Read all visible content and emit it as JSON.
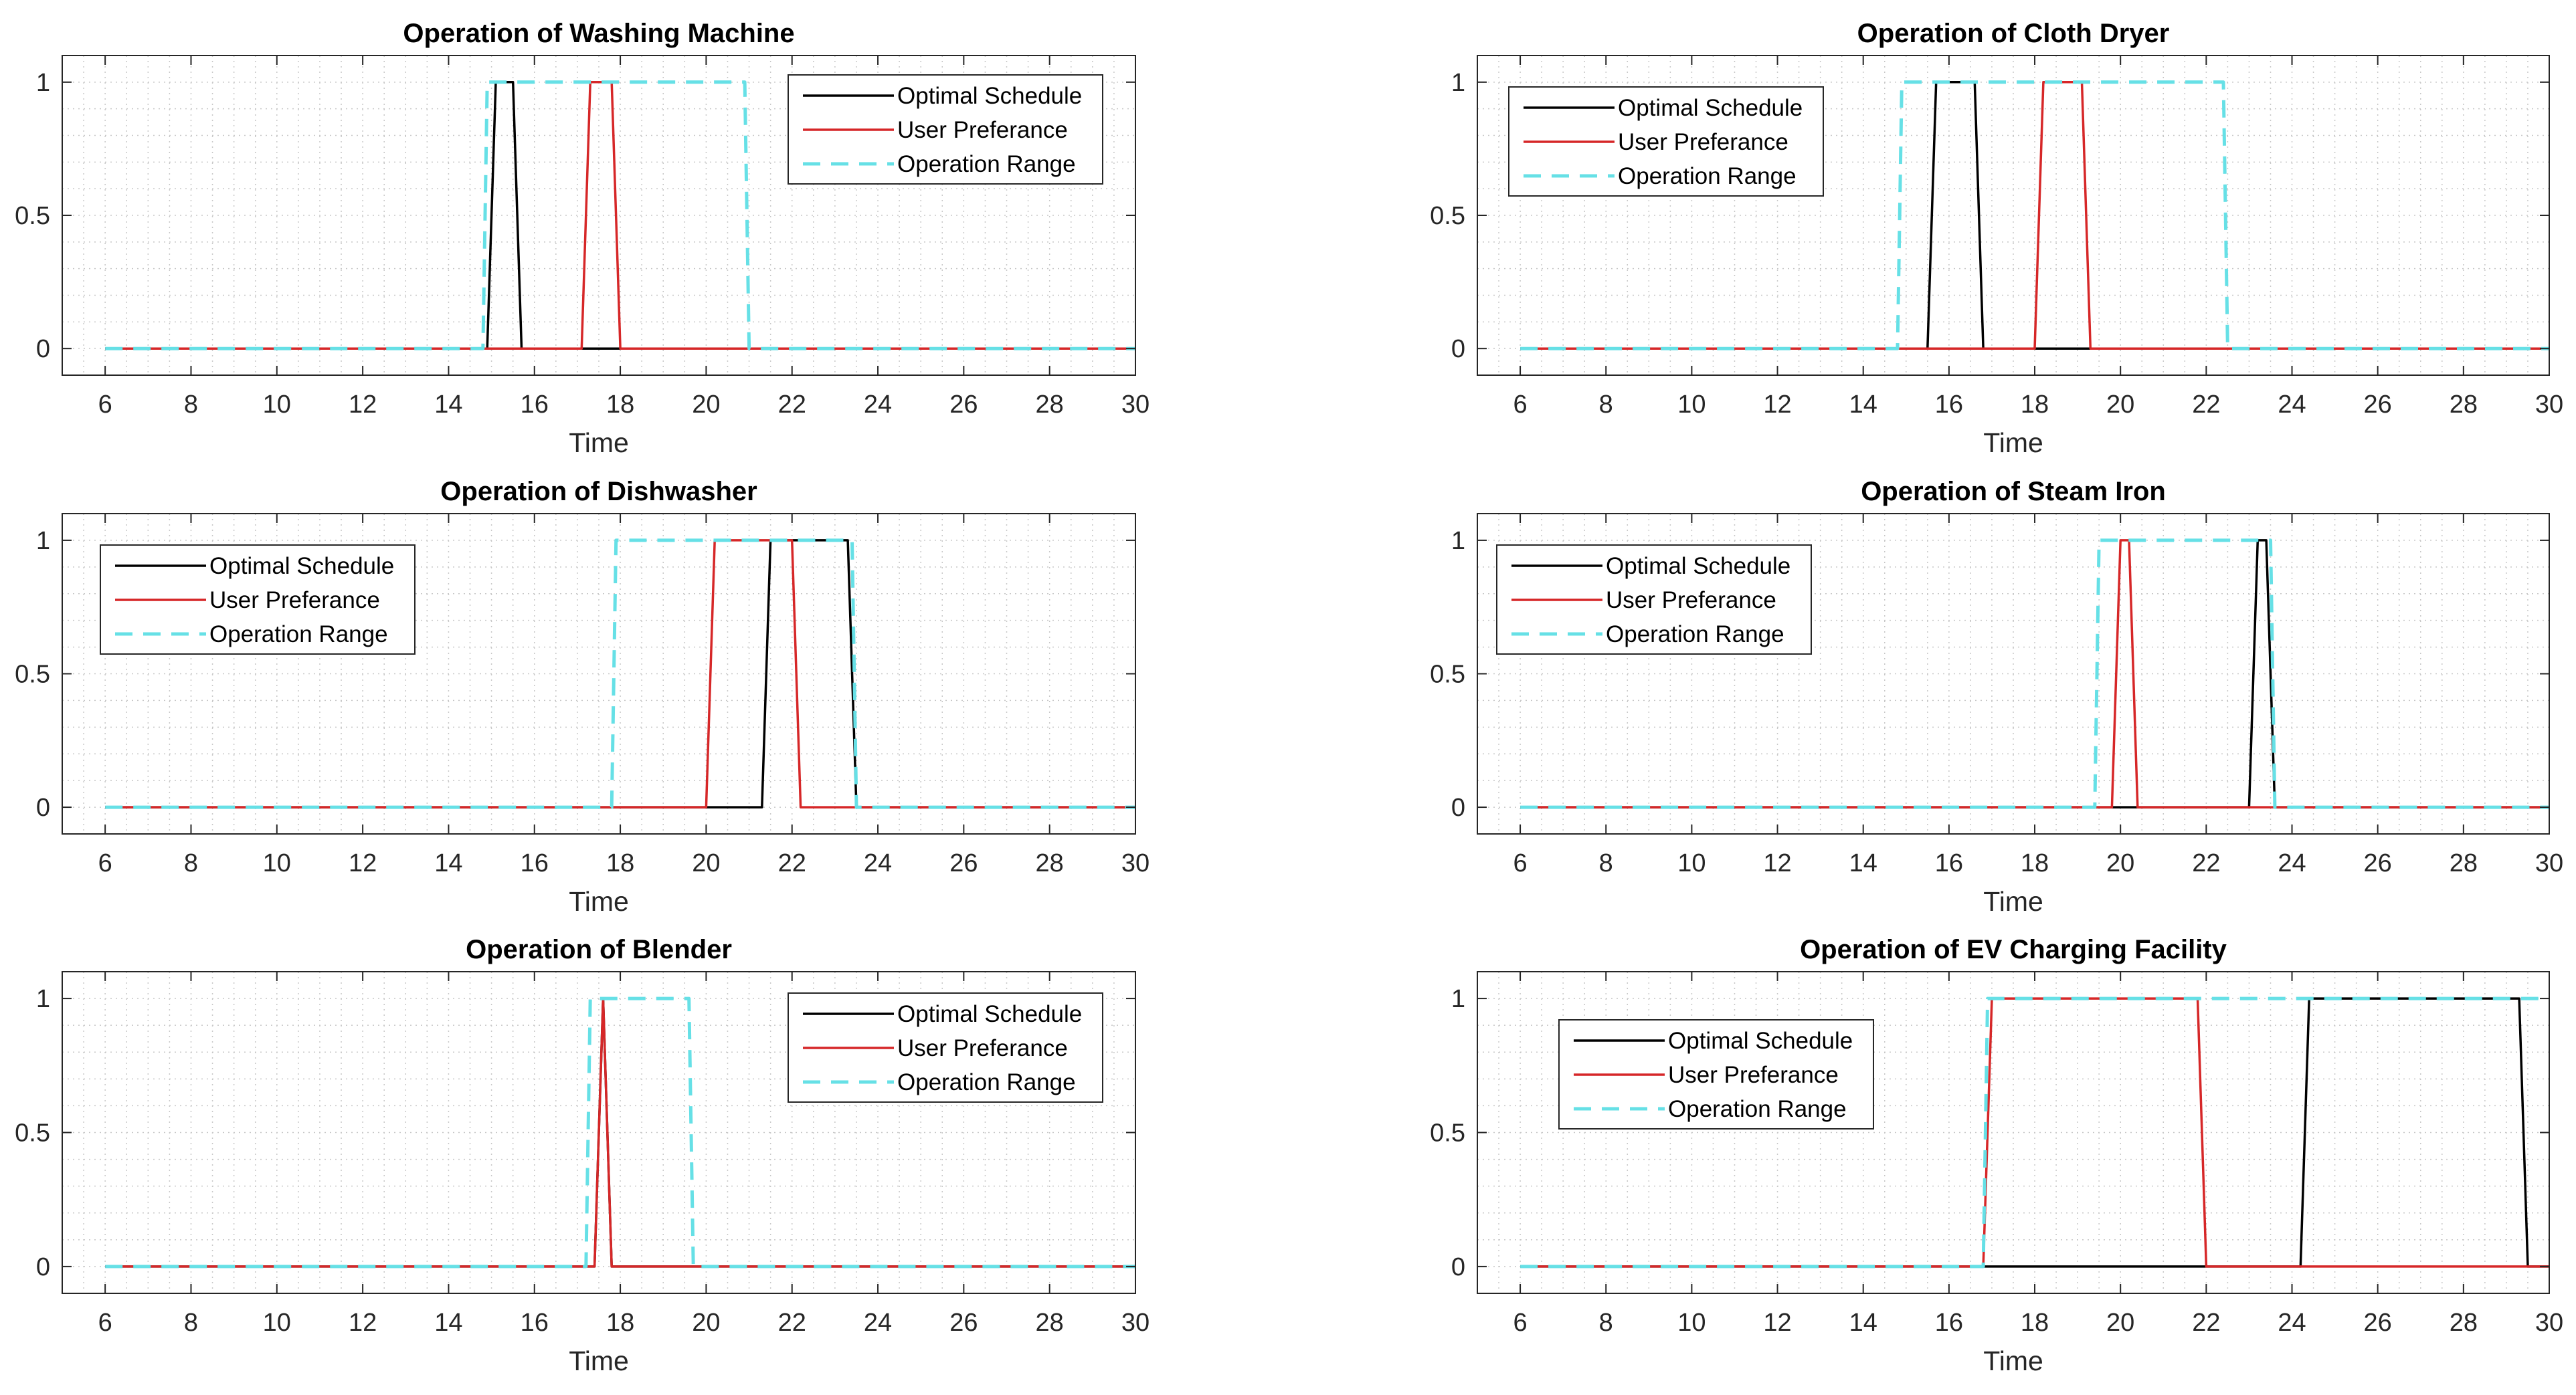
{
  "chart_data": [
    {
      "type": "line",
      "title": "Operation of Washing Machine",
      "xlabel": "Time",
      "ylabel": "",
      "xlim": [
        5,
        30
      ],
      "ylim": [
        -0.1,
        1.1
      ],
      "xticks": [
        6,
        8,
        10,
        12,
        14,
        16,
        18,
        20,
        22,
        24,
        26,
        28,
        30
      ],
      "yticks": [
        0,
        0.5,
        1
      ],
      "ytick_labels": [
        "0",
        "0.5",
        "1"
      ],
      "grid": "minor",
      "legend_position": "top-right",
      "series": [
        {
          "name": "Optimal Schedule",
          "color": "#000000",
          "style": "solid",
          "x": [
            6,
            14.9,
            15.1,
            15.5,
            15.7,
            30
          ],
          "y": [
            0,
            0,
            1,
            1,
            0,
            0
          ]
        },
        {
          "name": "User Preferance",
          "color": "#d62728",
          "style": "solid",
          "x": [
            6,
            17.1,
            17.3,
            17.8,
            18.0,
            30
          ],
          "y": [
            0,
            0,
            1,
            1,
            0,
            0
          ]
        },
        {
          "name": "Operation Range",
          "color": "#66e0e6",
          "style": "dashed",
          "x": [
            6,
            14.8,
            14.9,
            20.9,
            21.0,
            30
          ],
          "y": [
            0,
            0,
            1,
            1,
            0,
            0
          ]
        }
      ]
    },
    {
      "type": "line",
      "title": "Operation of Cloth Dryer",
      "xlabel": "Time",
      "ylabel": "",
      "xlim": [
        5,
        30
      ],
      "ylim": [
        -0.1,
        1.1
      ],
      "xticks": [
        6,
        8,
        10,
        12,
        14,
        16,
        18,
        20,
        22,
        24,
        26,
        28,
        30
      ],
      "yticks": [
        0,
        0.5,
        1
      ],
      "ytick_labels": [
        "0",
        "0.5",
        "1"
      ],
      "grid": "minor",
      "legend_position": "top-left",
      "series": [
        {
          "name": "Optimal Schedule",
          "color": "#000000",
          "style": "solid",
          "x": [
            6,
            15.5,
            15.7,
            16.6,
            16.8,
            30
          ],
          "y": [
            0,
            0,
            1,
            1,
            0,
            0
          ]
        },
        {
          "name": "User Preferance",
          "color": "#d62728",
          "style": "solid",
          "x": [
            6,
            18.0,
            18.2,
            19.1,
            19.3,
            30
          ],
          "y": [
            0,
            0,
            1,
            1,
            0,
            0
          ]
        },
        {
          "name": "Operation Range",
          "color": "#66e0e6",
          "style": "dashed",
          "x": [
            6,
            14.8,
            14.9,
            22.4,
            22.5,
            30
          ],
          "y": [
            0,
            0,
            1,
            1,
            0,
            0
          ]
        }
      ]
    },
    {
      "type": "line",
      "title": "Operation of Dishwasher",
      "xlabel": "Time",
      "ylabel": "",
      "xlim": [
        5,
        30
      ],
      "ylim": [
        -0.1,
        1.1
      ],
      "xticks": [
        6,
        8,
        10,
        12,
        14,
        16,
        18,
        20,
        22,
        24,
        26,
        28,
        30
      ],
      "yticks": [
        0,
        0.5,
        1
      ],
      "ytick_labels": [
        "0",
        "0.5",
        "1"
      ],
      "grid": "minor",
      "legend_position": "top-left",
      "series": [
        {
          "name": "Optimal Schedule",
          "color": "#000000",
          "style": "solid",
          "x": [
            6,
            21.3,
            21.5,
            23.3,
            23.5,
            30
          ],
          "y": [
            0,
            0,
            1,
            1,
            0,
            0
          ]
        },
        {
          "name": "User Preferance",
          "color": "#d62728",
          "style": "solid",
          "x": [
            6,
            20.0,
            20.2,
            22.0,
            22.2,
            30
          ],
          "y": [
            0,
            0,
            1,
            1,
            0,
            0
          ]
        },
        {
          "name": "Operation Range",
          "color": "#66e0e6",
          "style": "dashed",
          "x": [
            6,
            17.8,
            17.9,
            23.4,
            23.5,
            30
          ],
          "y": [
            0,
            0,
            1,
            1,
            0,
            0
          ]
        }
      ]
    },
    {
      "type": "line",
      "title": "Operation of Steam Iron",
      "xlabel": "Time",
      "ylabel": "",
      "xlim": [
        5,
        30
      ],
      "ylim": [
        -0.1,
        1.1
      ],
      "xticks": [
        6,
        8,
        10,
        12,
        14,
        16,
        18,
        20,
        22,
        24,
        26,
        28,
        30
      ],
      "yticks": [
        0,
        0.5,
        1
      ],
      "ytick_labels": [
        "0",
        "0.5",
        "1"
      ],
      "grid": "minor",
      "legend_position": "top-left",
      "series": [
        {
          "name": "Optimal Schedule",
          "color": "#000000",
          "style": "solid",
          "x": [
            6,
            23.0,
            23.2,
            23.4,
            23.6,
            30
          ],
          "y": [
            0,
            0,
            1,
            1,
            0,
            0
          ]
        },
        {
          "name": "User Preferance",
          "color": "#d62728",
          "style": "solid",
          "x": [
            6,
            19.8,
            20.0,
            20.2,
            20.4,
            30
          ],
          "y": [
            0,
            0,
            1,
            1,
            0,
            0
          ]
        },
        {
          "name": "Operation Range",
          "color": "#66e0e6",
          "style": "dashed",
          "x": [
            6,
            19.4,
            19.5,
            23.5,
            23.6,
            30
          ],
          "y": [
            0,
            0,
            1,
            1,
            0,
            0
          ]
        }
      ]
    },
    {
      "type": "line",
      "title": "Operation of Blender",
      "xlabel": "Time",
      "ylabel": "",
      "xlim": [
        5,
        30
      ],
      "ylim": [
        -0.1,
        1.1
      ],
      "xticks": [
        6,
        8,
        10,
        12,
        14,
        16,
        18,
        20,
        22,
        24,
        26,
        28,
        30
      ],
      "yticks": [
        0,
        0.5,
        1
      ],
      "ytick_labels": [
        "0",
        "0.5",
        "1"
      ],
      "grid": "minor",
      "legend_position": "top-right",
      "series": [
        {
          "name": "Optimal Schedule",
          "color": "#000000",
          "style": "solid",
          "x": [
            6,
            17.4,
            17.6,
            17.8,
            30
          ],
          "y": [
            0,
            0,
            1,
            0,
            0
          ]
        },
        {
          "name": "User Preferance",
          "color": "#d62728",
          "style": "solid",
          "x": [
            6,
            17.4,
            17.6,
            17.8,
            30
          ],
          "y": [
            0,
            0,
            1,
            0,
            0
          ]
        },
        {
          "name": "Operation Range",
          "color": "#66e0e6",
          "style": "dashed",
          "x": [
            6,
            17.2,
            17.3,
            19.6,
            19.7,
            30
          ],
          "y": [
            0,
            0,
            1,
            1,
            0,
            0
          ]
        }
      ]
    },
    {
      "type": "line",
      "title": "Operation of EV Charging Facility",
      "xlabel": "Time",
      "ylabel": "",
      "xlim": [
        5,
        30
      ],
      "ylim": [
        -0.1,
        1.1
      ],
      "xticks": [
        6,
        8,
        10,
        12,
        14,
        16,
        18,
        20,
        22,
        24,
        26,
        28,
        30
      ],
      "yticks": [
        0,
        0.5,
        1
      ],
      "ytick_labels": [
        "0",
        "0.5",
        "1"
      ],
      "grid": "minor",
      "legend_position": "top-left",
      "series": [
        {
          "name": "Optimal Schedule",
          "color": "#000000",
          "style": "solid",
          "x": [
            6,
            24.2,
            24.4,
            29.3,
            29.5,
            30
          ],
          "y": [
            0,
            0,
            1,
            1,
            0,
            0
          ]
        },
        {
          "name": "User Preferance",
          "color": "#d62728",
          "style": "solid",
          "x": [
            6,
            16.8,
            17.0,
            21.8,
            22.0,
            30
          ],
          "y": [
            0,
            0,
            1,
            1,
            0,
            0
          ]
        },
        {
          "name": "Operation Range",
          "color": "#66e0e6",
          "style": "dashed",
          "x": [
            6,
            16.8,
            16.9,
            30
          ],
          "y": [
            0,
            0,
            1,
            1
          ]
        }
      ]
    }
  ]
}
